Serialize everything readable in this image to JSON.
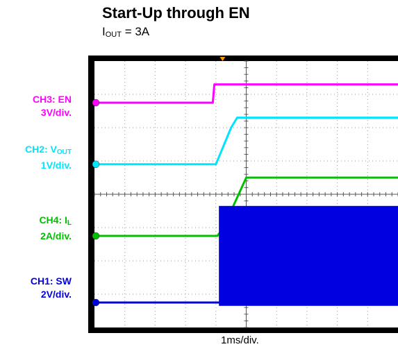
{
  "title": "Start-Up through EN",
  "subtitle": {
    "symbol": "I",
    "sub": "OUT",
    "rest": " = 3A"
  },
  "x_caption": "1ms/div.",
  "channels": [
    {
      "id": "CH3",
      "line1_pre": "CH3: EN",
      "line1_sub": "",
      "line2": "3V/div.",
      "color": "#ff00ff"
    },
    {
      "id": "CH2",
      "line1_pre": "CH2: V",
      "line1_sub": "OUT",
      "line2": "1V/div.",
      "color": "#00e5ff"
    },
    {
      "id": "CH4",
      "line1_pre": "CH4: I",
      "line1_sub": "L",
      "line2": "2A/div.",
      "color": "#00c000"
    },
    {
      "id": "CH1",
      "line1_pre": "CH1: SW",
      "line1_sub": "",
      "line2": "2V/div.",
      "color": "#0000e0"
    }
  ],
  "chart_data": {
    "type": "line",
    "title": "Start-Up through EN",
    "subtitle": "IOUT = 3A",
    "xlabel": "1ms/div.",
    "x_units": "div",
    "xlim": [
      0,
      10
    ],
    "ylim": [
      -4,
      4
    ],
    "grid": true,
    "series": [
      {
        "name": "CH3: EN",
        "scale": "3V/div.",
        "color": "#ff00ff",
        "x": [
          0,
          3.9,
          3.95,
          10
        ],
        "y": [
          2.75,
          2.75,
          3.3,
          3.3
        ]
      },
      {
        "name": "CH2: VOUT",
        "scale": "1V/div.",
        "color": "#00e5ff",
        "x": [
          0,
          4.0,
          4.5,
          4.7,
          10
        ],
        "y": [
          0.9,
          0.9,
          2.0,
          2.3,
          2.3
        ]
      },
      {
        "name": "CH4: IL",
        "scale": "2A/div.",
        "color": "#00c000",
        "x": [
          0,
          4.05,
          4.25,
          5.0,
          10
        ],
        "y": [
          -1.25,
          -1.25,
          -1.0,
          0.5,
          0.5
        ]
      },
      {
        "name": "CH1: SW",
        "scale": "2V/div.",
        "color": "#0000e0",
        "x": [
          0,
          4.1,
          10
        ],
        "y": [
          -3.25,
          -3.25,
          -3.25
        ]
      }
    ]
  }
}
